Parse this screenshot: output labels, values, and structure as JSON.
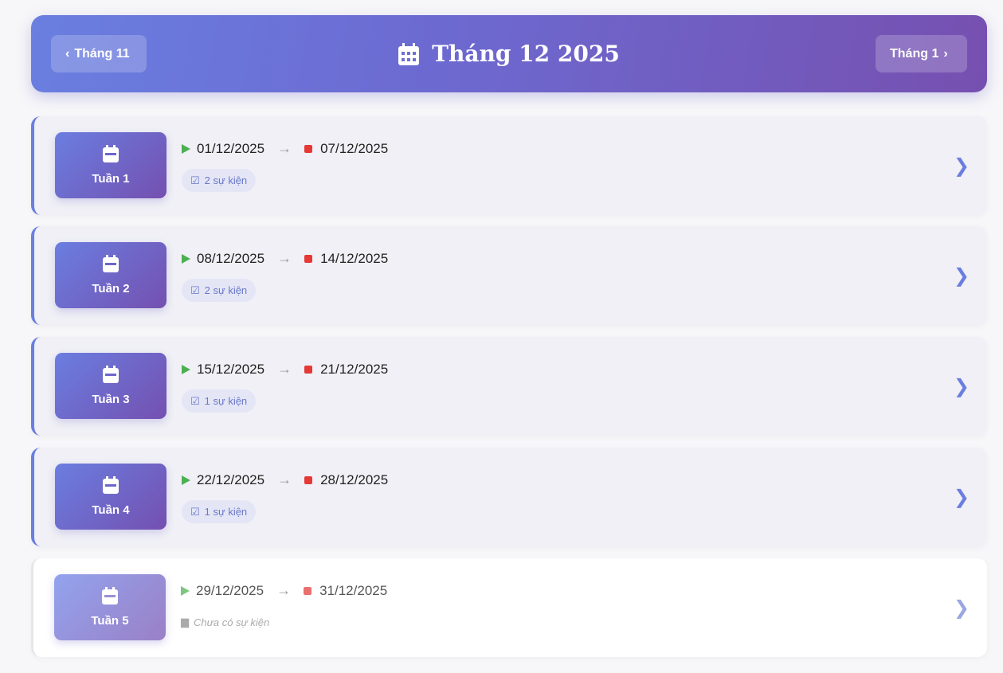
{
  "header": {
    "title": "Tháng 12 2025",
    "prev_label": "Tháng 11",
    "next_label": "Tháng 1",
    "icon": "calendar-icon"
  },
  "weeks": [
    {
      "label": "Tuần 1",
      "start": "01/12/2025",
      "end": "07/12/2025",
      "events": "2 sự kiện"
    },
    {
      "label": "Tuần 2",
      "start": "08/12/2025",
      "end": "14/12/2025",
      "events": "2 sự kiện"
    },
    {
      "label": "Tuần 3",
      "start": "15/12/2025",
      "end": "21/12/2025",
      "events": "1 sự kiện"
    },
    {
      "label": "Tuần 4",
      "start": "22/12/2025",
      "end": "28/12/2025",
      "events": "1 sự kiện"
    },
    {
      "label": "Tuần 5",
      "start": "29/12/2025",
      "end": "31/12/2025",
      "no_events": "Chưa có sự kiện"
    }
  ],
  "colors": {
    "accent": "#6a7ee0",
    "start": "#4caf50",
    "end": "#e53935"
  }
}
